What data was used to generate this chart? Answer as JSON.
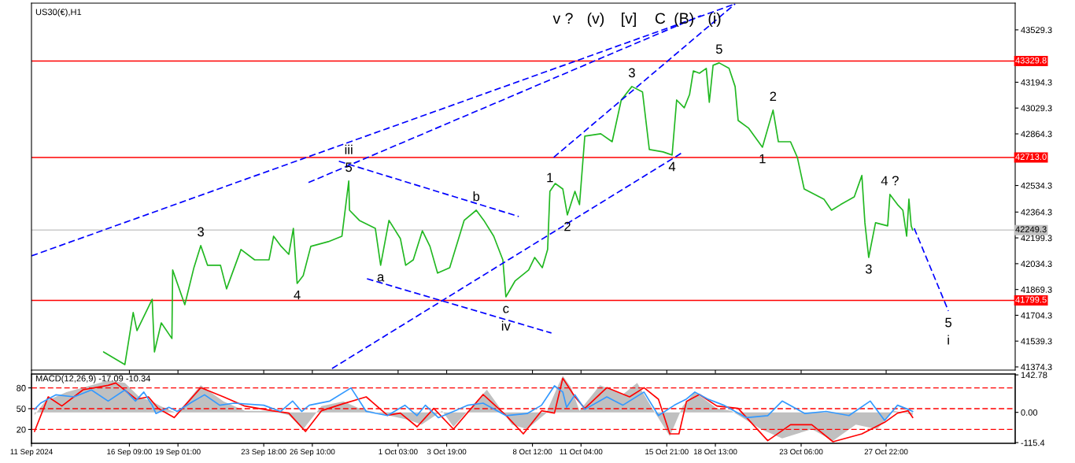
{
  "chart_data": [
    {
      "type": "line",
      "title": "US30(€),H1",
      "tick_labels": "y",
      "xlim": [
        "2024-09-11T00:00",
        "2024-11-04T00:00"
      ],
      "ylim": [
        41354,
        43700
      ],
      "xticks": [
        {
          "value": "2024-09-11T00:00",
          "label": null
        },
        {
          "value": "2024-09-16T09:00",
          "label": null
        },
        {
          "value": "2024-09-19T01:00",
          "label": null
        },
        {
          "value": "2024-09-23T18:00",
          "label": null
        },
        {
          "value": "2024-09-26T10:00",
          "label": null
        },
        {
          "value": "2024-10-01T03:00",
          "label": null
        },
        {
          "value": "2024-10-03T19:00",
          "label": null
        },
        {
          "value": "2024-10-08T12:00",
          "label": null
        },
        {
          "value": "2024-10-11T04:00",
          "label": null
        },
        {
          "value": "2024-10-15T21:00",
          "label": null
        },
        {
          "value": "2024-10-18T13:00",
          "label": null
        },
        {
          "value": "2024-10-23T06:00",
          "label": null
        },
        {
          "value": "2024-10-27T22:00",
          "label": null
        }
      ],
      "yticks": [
        43529.3,
        43194.3,
        43029.3,
        42864.3,
        42534.3,
        42364.3,
        42199.3,
        42034.3,
        41869.3,
        41704.3,
        41539.3,
        41374.3
      ],
      "ref_lines": [
        {
          "axis": "y",
          "value": 43329.8,
          "label": "43329.8",
          "color": "#ff0000",
          "line_style": "solid"
        },
        {
          "axis": "y",
          "value": 42713.0,
          "label": "42713.0",
          "color": "#ff0000",
          "line_style": "solid"
        },
        {
          "axis": "y",
          "value": 41799.5,
          "label": "41799.5",
          "color": "#ff0000",
          "line_style": "solid"
        },
        {
          "axis": "y",
          "value": 42249.3,
          "label": "42249.3",
          "color": "#c0c0c0",
          "line_style": "solid"
        }
      ],
      "series": [
        {
          "color": "#22b822",
          "line_style": "solid",
          "x": [
            "2024-09-14T23:00",
            "2024-09-16T03:00",
            "2024-09-16T14:00",
            "2024-09-16T19:00",
            "2024-09-17T15:00",
            "2024-09-17T18:00",
            "2024-09-18T03:00",
            "2024-09-18T17:00",
            "2024-09-18T18:00",
            "2024-09-19T10:00",
            "2024-09-19T22:00",
            "2024-09-20T07:00",
            "2024-09-20T16:00",
            "2024-09-21T09:00",
            "2024-09-21T17:00",
            "2024-09-22T12:00",
            "2024-09-23T06:00",
            "2024-09-24T01:00",
            "2024-09-24T07:00",
            "2024-09-24T17:00",
            "2024-09-25T03:00",
            "2024-09-25T09:00",
            "2024-09-25T14:00",
            "2024-09-25T22:00",
            "2024-09-26T08:00",
            "2024-09-27T07:00",
            "2024-09-28T01:00",
            "2024-09-28T10:00",
            "2024-09-28T11:00",
            "2024-09-29T00:00",
            "2024-09-29T21:00",
            "2024-09-30T04:00",
            "2024-09-30T15:00",
            "2024-10-01T06:00",
            "2024-10-01T13:00",
            "2024-10-01T23:00",
            "2024-10-02T11:00",
            "2024-10-02T21:00",
            "2024-10-03T07:00",
            "2024-10-03T23:00",
            "2024-10-04T18:00",
            "2024-10-05T10:00",
            "2024-10-05T20:00",
            "2024-10-06T09:00",
            "2024-10-06T21:00",
            "2024-10-07T01:00",
            "2024-10-07T13:00",
            "2024-10-08T07:00",
            "2024-10-08T15:00",
            "2024-10-09T01:00",
            "2024-10-09T08:00",
            "2024-10-09T11:00",
            "2024-10-09T18:00",
            "2024-10-10T04:00",
            "2024-10-10T10:00",
            "2024-10-10T20:00",
            "2024-10-11T02:00",
            "2024-10-11T09:00",
            "2024-10-12T06:00",
            "2024-10-12T21:00",
            "2024-10-13T09:00",
            "2024-10-13T23:00",
            "2024-10-14T13:00",
            "2024-10-14T22:00",
            "2024-10-15T16:00",
            "2024-10-16T04:00",
            "2024-10-16T10:00",
            "2024-10-16T20:00",
            "2024-10-17T03:00",
            "2024-10-17T08:00",
            "2024-10-17T16:00",
            "2024-10-18T01:00",
            "2024-10-18T05:00",
            "2024-10-18T10:00",
            "2024-10-18T18:00",
            "2024-10-19T07:00",
            "2024-10-19T15:00",
            "2024-10-19T19:00",
            "2024-10-20T09:00",
            "2024-10-21T03:00",
            "2024-10-21T17:00",
            "2024-10-22T00:00",
            "2024-10-22T16:00",
            "2024-10-23T01:00",
            "2024-10-23T10:00",
            "2024-10-24T00:00",
            "2024-10-24T12:00",
            "2024-10-24T22:00",
            "2024-10-25T10:00",
            "2024-10-26T04:00",
            "2024-10-26T14:00",
            "2024-10-26T18:00",
            "2024-10-26T23:00",
            "2024-10-27T08:00",
            "2024-10-28T00:00",
            "2024-10-28T03:00",
            "2024-10-28T13:00",
            "2024-10-28T20:00",
            "2024-10-29T01:00",
            "2024-10-29T04:00",
            "2024-10-29T07:00",
            "2024-10-29T09:00"
          ],
          "values": [
            41470,
            41389,
            41722,
            41606,
            41807,
            41470,
            41656,
            41556,
            41994,
            41772,
            42009,
            42150,
            42024,
            42024,
            41873,
            42125,
            42059,
            42059,
            42210,
            42145,
            42094,
            42260,
            41908,
            41958,
            42145,
            42175,
            42210,
            42563,
            42376,
            42311,
            42260,
            42024,
            42311,
            42195,
            42024,
            42059,
            42245,
            42145,
            41974,
            42009,
            42311,
            42376,
            42311,
            42210,
            42059,
            41822,
            41923,
            41994,
            42074,
            42009,
            42125,
            42497,
            42547,
            42512,
            42346,
            42497,
            42412,
            42850,
            42865,
            42814,
            43081,
            43167,
            43132,
            42764,
            42749,
            42729,
            43081,
            43031,
            43116,
            43267,
            43252,
            43283,
            43066,
            43303,
            43318,
            43283,
            43167,
            42950,
            42900,
            42779,
            43016,
            42814,
            42814,
            42714,
            42512,
            42477,
            42447,
            42376,
            42412,
            42462,
            42598,
            42296,
            42074,
            42296,
            42276,
            42477,
            42412,
            42376,
            42210,
            42447,
            42276,
            42249
          ]
        },
        {
          "color": "#0000ff",
          "line_style": "dashed",
          "x": [
            "2024-10-29T11:00",
            "2024-10-31T08:00"
          ],
          "values": [
            42260,
            41732
          ]
        },
        {
          "color": "#0000ff",
          "line_style": "dashed",
          "x": [
            "2024-09-11T00:00",
            "2024-10-19T15:00"
          ],
          "values": [
            42084,
            43695
          ]
        },
        {
          "color": "#0000ff",
          "line_style": "dashed",
          "x": [
            "2024-09-26T05:00",
            "2024-10-17T18:00"
          ],
          "values": [
            42553,
            43620
          ]
        },
        {
          "color": "#0000ff",
          "line_style": "dashed",
          "x": [
            "2024-09-27T12:00",
            "2024-10-16T19:00"
          ],
          "values": [
            41364,
            42749
          ]
        },
        {
          "color": "#0000ff",
          "line_style": "dashed",
          "x": [
            "2024-10-09T16:00",
            "2024-10-19T15:00"
          ],
          "values": [
            42714,
            43695
          ]
        },
        {
          "color": "#0000ff",
          "line_style": "dashed",
          "x": [
            "2024-09-27T21:00",
            "2024-10-07T18:00"
          ],
          "values": [
            42689,
            42336
          ]
        },
        {
          "color": "#0000ff",
          "line_style": "dashed",
          "x": [
            "2024-09-29T10:00",
            "2024-10-09T13:00"
          ],
          "values": [
            41938,
            41591
          ]
        }
      ],
      "annotations": [
        {
          "text": "5",
          "x": "2024-09-28T10:00",
          "y": 42563
        },
        {
          "text": "iii",
          "x": "2024-09-28T10:00",
          "y": 42563
        },
        {
          "text": "3",
          "x": "2024-09-20T07:00",
          "y": 42150
        },
        {
          "text": "4",
          "x": "2024-09-25T14:00",
          "y": 41908
        },
        {
          "text": "a",
          "x": "2024-09-30T04:00",
          "y": 42024
        },
        {
          "text": "b",
          "x": "2024-10-05T10:00",
          "y": 42376
        },
        {
          "text": "c",
          "x": "2024-10-07T01:00",
          "y": 41822
        },
        {
          "text": "iv",
          "x": "2024-10-07T01:00",
          "y": 41822
        },
        {
          "text": "1",
          "x": "2024-10-09T11:00",
          "y": 42497
        },
        {
          "text": "2",
          "x": "2024-10-10T10:00",
          "y": 42346
        },
        {
          "text": "3",
          "x": "2024-10-13T23:00",
          "y": 43167
        },
        {
          "text": "4",
          "x": "2024-10-16T04:00",
          "y": 42729
        },
        {
          "text": "5",
          "x": "2024-10-18T18:00",
          "y": 43318
        },
        {
          "text": "2",
          "x": "2024-10-21T17:00",
          "y": 43016
        },
        {
          "text": "1",
          "x": "2024-10-21T03:00",
          "y": 42779
        },
        {
          "text": "3",
          "x": "2024-10-26T23:00",
          "y": 42074
        },
        {
          "text": "4 ?",
          "x": "2024-10-28T03:00",
          "y": 42477
        },
        {
          "text": "5",
          "x": "2024-10-31T08:00",
          "y": 41732
        },
        {
          "text": "i",
          "x": "2024-10-31T08:00",
          "y": 41732
        },
        "v ?",
        "(v)",
        "[v]",
        "C",
        "(B)",
        "(i)"
      ]
    },
    {
      "type": "line",
      "title": "MACD(12,26,9) -17.09 -10.34",
      "xlim": [
        "2024-09-11T00:00",
        "2024-11-04T00:00"
      ],
      "ylim": [
        -118,
        146
      ],
      "y2lim": [
        0,
        100
      ],
      "xticks": [
        {
          "value": "2024-09-11T00:00",
          "label": "11 Sep 2024"
        },
        {
          "value": "2024-09-16T09:00",
          "label": "16 Sep 09:00"
        },
        {
          "value": "2024-09-19T01:00",
          "label": "19 Sep 01:00"
        },
        {
          "value": "2024-09-23T18:00",
          "label": "23 Sep 18:00"
        },
        {
          "value": "2024-09-26T10:00",
          "label": "26 Sep 10:00"
        },
        {
          "value": "2024-10-01T03:00",
          "label": "1 Oct 03:00"
        },
        {
          "value": "2024-10-03T19:00",
          "label": "3 Oct 19:00"
        },
        {
          "value": "2024-10-08T12:00",
          "label": "8 Oct 12:00"
        },
        {
          "value": "2024-10-11T04:00",
          "label": "11 Oct 04:00"
        },
        {
          "value": "2024-10-15T21:00",
          "label": "15 Oct 21:00"
        },
        {
          "value": "2024-10-18T13:00",
          "label": "18 Oct 13:00"
        },
        {
          "value": "2024-10-23T06:00",
          "label": "23 Oct 06:00"
        },
        {
          "value": "2024-10-27T22:00",
          "label": "27 Oct 22:00"
        }
      ],
      "yticks": [
        142.78,
        {
          "value": 0,
          "label": "0.00"
        },
        -115.4
      ],
      "y2ticks": [
        80,
        50,
        20
      ],
      "ref_lines": [
        {
          "axis": "y2",
          "value": 80,
          "color": "#ff0000",
          "line_style": "dashed"
        },
        {
          "axis": "y2",
          "value": 50,
          "color": "#ff0000",
          "line_style": "dashed"
        },
        {
          "axis": "y2",
          "value": 20,
          "color": "#ff0000",
          "line_style": "dashed"
        }
      ],
      "series": [
        {
          "type": "area",
          "color": "#c0c0c0",
          "x": [
            "2024-09-11T04:00",
            "2024-09-11T18:00",
            "2024-09-12T22:00",
            "2024-09-13T20:00",
            "2024-09-15T05:00",
            "2024-09-16T03:00",
            "2024-09-16T22:00",
            "2024-09-17T15:00",
            "2024-09-18T02:00",
            "2024-09-19T00:00",
            "2024-09-20T07:00",
            "2024-09-21T13:00",
            "2024-09-22T17:00",
            "2024-09-24T05:00",
            "2024-09-25T03:00",
            "2024-09-25T22:00",
            "2024-09-26T22:00",
            "2024-09-28T03:00",
            "2024-09-29T00:00",
            "2024-09-30T13:00",
            "2024-10-01T17:00",
            "2024-10-02T10:00",
            "2024-10-03T13:00",
            "2024-10-04T04:00",
            "2024-10-06T00:00",
            "2024-10-07T09:00",
            "2024-10-08T05:00",
            "2024-10-09T06:00",
            "2024-10-09T22:00",
            "2024-10-10T04:00",
            "2024-10-10T15:00",
            "2024-10-11T02:00",
            "2024-10-12T05:00",
            "2024-10-13T11:00",
            "2024-10-14T06:00",
            "2024-10-15T00:00",
            "2024-10-16T01:00",
            "2024-10-16T18:00",
            "2024-10-17T10:00",
            "2024-10-18T15:00",
            "2024-10-19T10:00",
            "2024-10-21T01:00",
            "2024-10-22T05:00",
            "2024-10-23T20:00",
            "2024-10-25T00:00",
            "2024-10-26T06:00",
            "2024-10-27T10:00",
            "2024-10-28T08:00",
            "2024-10-29T00:00",
            "2024-10-29T09:00"
          ],
          "values": [
            -11,
            42,
            77,
            94,
            121,
            112,
            59,
            42,
            24,
            -3,
            103,
            42,
            6,
            6,
            -11,
            -64,
            24,
            42,
            15,
            -11,
            -29,
            -47,
            6,
            -55,
            86,
            -47,
            -64,
            -3,
            103,
            139,
            94,
            6,
            103,
            68,
            112,
            24,
            -91,
            24,
            77,
            15,
            6,
            -64,
            -99,
            -64,
            -108,
            -47,
            -64,
            6,
            -3,
            -11
          ]
        },
        {
          "color": "#ff0000",
          "line_style": "solid",
          "x": [
            "2024-09-11T04:00",
            "2024-09-11T22:00",
            "2024-09-12T16:00",
            "2024-09-13T20:00",
            "2024-09-15T05:00",
            "2024-09-15T15:00",
            "2024-09-16T18:00",
            "2024-09-17T10:00",
            "2024-09-17T23:00",
            "2024-09-18T20:00",
            "2024-09-20T07:00",
            "2024-09-21T13:00",
            "2024-09-22T17:00",
            "2024-09-24T05:00",
            "2024-09-25T03:00",
            "2024-09-26T01:00",
            "2024-09-26T22:00",
            "2024-09-28T03:00",
            "2024-09-29T09:00",
            "2024-09-30T13:00",
            "2024-10-01T06:00",
            "2024-10-02T04:00",
            "2024-10-03T02:00",
            "2024-10-04T04:00",
            "2024-10-05T19:00",
            "2024-10-07T01:00",
            "2024-10-08T00:00",
            "2024-10-09T00:00",
            "2024-10-09T17:00",
            "2024-10-10T04:00",
            "2024-10-10T20:00",
            "2024-10-11T09:00",
            "2024-10-12T14:00",
            "2024-10-13T20:00",
            "2024-10-14T15:00",
            "2024-10-15T10:00",
            "2024-10-16T01:00",
            "2024-10-16T13:00",
            "2024-10-16T23:00",
            "2024-10-17T16:00",
            "2024-10-18T15:00",
            "2024-10-19T19:00",
            "2024-10-21T10:00",
            "2024-10-22T16:00",
            "2024-10-23T20:00",
            "2024-10-25T00:00",
            "2024-10-26T14:00",
            "2024-10-27T20:00",
            "2024-10-28T13:00",
            "2024-10-29T03:00",
            "2024-10-29T09:00"
          ],
          "values": [
            -73,
            59,
            24,
            86,
            103,
            112,
            50,
            59,
            15,
            -20,
            94,
            59,
            24,
            6,
            -3,
            -73,
            6,
            33,
            59,
            -11,
            -3,
            -55,
            15,
            -64,
            68,
            -11,
            -82,
            6,
            -3,
            130,
            59,
            15,
            94,
            59,
            94,
            50,
            -82,
            -82,
            42,
            68,
            24,
            15,
            -108,
            -47,
            -47,
            -112,
            -82,
            -38,
            -3,
            6,
            -20
          ]
        },
        {
          "axis": "y2",
          "color": "#3399ff",
          "line_style": "solid",
          "x": [
            "2024-09-11T04:00",
            "2024-09-11T12:00",
            "2024-09-12T08:00",
            "2024-09-13T08:00",
            "2024-09-14T07:00",
            "2024-09-15T05:00",
            "2024-09-16T03:00",
            "2024-09-16T17:00",
            "2024-09-17T04:00",
            "2024-09-17T15:00",
            "2024-09-17T20:00",
            "2024-09-18T13:00",
            "2024-09-19T00:00",
            "2024-09-19T17:00",
            "2024-09-20T12:00",
            "2024-09-21T08:00",
            "2024-09-22T03:00",
            "2024-09-23T18:00",
            "2024-09-24T16:00",
            "2024-09-25T08:00",
            "2024-09-25T20:00",
            "2024-09-26T06:00",
            "2024-09-27T09:00",
            "2024-09-28T13:00",
            "2024-09-29T09:00",
            "2024-09-30T13:00",
            "2024-10-01T12:00",
            "2024-10-02T04:00",
            "2024-10-02T15:00",
            "2024-10-03T08:00",
            "2024-10-04T04:00",
            "2024-10-04T23:00",
            "2024-10-05T19:00",
            "2024-10-07T01:00",
            "2024-10-08T05:00",
            "2024-10-09T00:00",
            "2024-10-09T17:00",
            "2024-10-10T04:00",
            "2024-10-10T09:00",
            "2024-10-10T20:00",
            "2024-10-11T09:00",
            "2024-10-12T14:00",
            "2024-10-13T11:00",
            "2024-10-14T15:00",
            "2024-10-15T10:00",
            "2024-10-16T07:00",
            "2024-10-16T23:00",
            "2024-10-17T10:00",
            "2024-10-18T03:00",
            "2024-10-19T00:00",
            "2024-10-20T06:00",
            "2024-10-21T10:00",
            "2024-10-22T05:00",
            "2024-10-23T11:00",
            "2024-10-24T15:00",
            "2024-10-25T21:00",
            "2024-10-27T01:00",
            "2024-10-27T20:00",
            "2024-10-28T13:00",
            "2024-10-29T03:00",
            "2024-10-29T09:00"
          ],
          "values": [
            49,
            58,
            70,
            67,
            77,
            61,
            77,
            61,
            74,
            55,
            43,
            52,
            46,
            58,
            70,
            55,
            58,
            55,
            46,
            61,
            46,
            55,
            61,
            80,
            46,
            40,
            55,
            40,
            55,
            37,
            46,
            55,
            58,
            40,
            43,
            55,
            83,
            74,
            52,
            70,
            49,
            67,
            55,
            74,
            40,
            55,
            64,
            74,
            64,
            55,
            37,
            40,
            61,
            43,
            46,
            40,
            61,
            33,
            55,
            49,
            46
          ]
        }
      ]
    }
  ]
}
